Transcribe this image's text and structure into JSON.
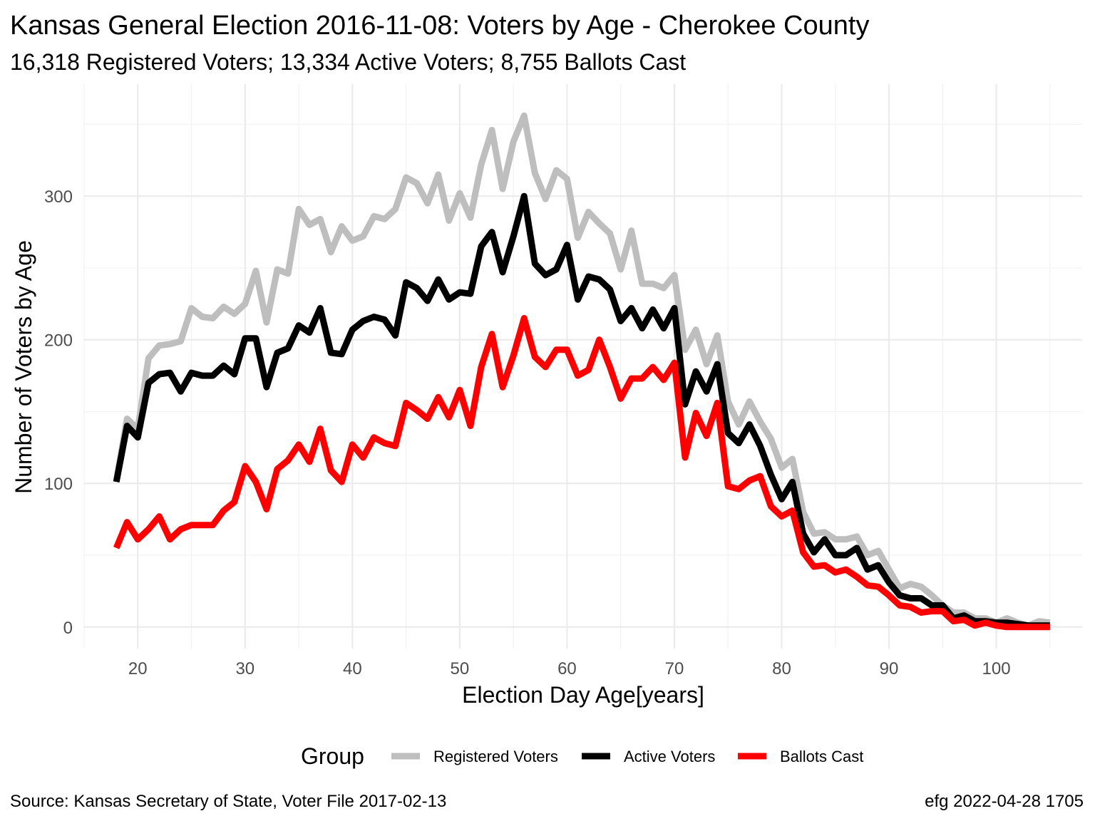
{
  "chart_data": {
    "type": "line",
    "title": "Kansas General Election 2016-11-08:  Voters by Age - Cherokee County",
    "subtitle": "16,318 Registered Voters; 13,334 Active Voters; 8,755 Ballots Cast",
    "xlabel": "Election Day Age[years]",
    "ylabel": "Number of Voters by Age",
    "xlim": [
      15,
      108
    ],
    "ylim": [
      -15,
      378
    ],
    "x_ticks": [
      20,
      30,
      40,
      50,
      60,
      70,
      80,
      90,
      100
    ],
    "y_ticks": [
      0,
      100,
      200,
      300
    ],
    "grid": true,
    "legend": {
      "title": "Group",
      "position": "bottom",
      "entries": [
        "Registered Voters",
        "Active Voters",
        "Ballots Cast"
      ]
    },
    "caption_left": "Source:  Kansas Secretary of State, Voter File  2017-02-13",
    "caption_right": "efg 2022-04-28 1705",
    "x": [
      18,
      19,
      20,
      21,
      22,
      23,
      24,
      25,
      26,
      27,
      28,
      29,
      30,
      31,
      32,
      33,
      34,
      35,
      36,
      37,
      38,
      39,
      40,
      41,
      42,
      43,
      44,
      45,
      46,
      47,
      48,
      49,
      50,
      51,
      52,
      53,
      54,
      55,
      56,
      57,
      58,
      59,
      60,
      61,
      62,
      63,
      64,
      65,
      66,
      67,
      68,
      69,
      70,
      71,
      72,
      73,
      74,
      75,
      76,
      77,
      78,
      79,
      80,
      81,
      82,
      83,
      84,
      85,
      86,
      87,
      88,
      89,
      90,
      91,
      92,
      93,
      94,
      95,
      96,
      97,
      98,
      99,
      100,
      101,
      102,
      103,
      104,
      105
    ],
    "series": [
      {
        "name": "Registered Voters",
        "color": "#bebebe",
        "values": [
          102,
          145,
          138,
          187,
          196,
          197,
          199,
          222,
          216,
          215,
          223,
          218,
          225,
          248,
          212,
          249,
          246,
          291,
          280,
          284,
          261,
          279,
          269,
          272,
          286,
          284,
          291,
          313,
          309,
          295,
          315,
          283,
          302,
          285,
          322,
          346,
          305,
          338,
          356,
          316,
          298,
          318,
          312,
          271,
          289,
          281,
          274,
          249,
          276,
          239,
          239,
          236,
          245,
          193,
          207,
          183,
          203,
          157,
          141,
          157,
          143,
          131,
          111,
          117,
          80,
          65,
          66,
          61,
          61,
          63,
          50,
          53,
          40,
          27,
          30,
          28,
          22,
          15,
          10,
          10,
          6,
          6,
          3,
          6,
          3,
          1,
          4,
          3
        ]
      },
      {
        "name": "Active Voters",
        "color": "#000000",
        "values": [
          101,
          140,
          132,
          170,
          176,
          177,
          164,
          177,
          175,
          175,
          182,
          176,
          201,
          201,
          167,
          191,
          194,
          210,
          205,
          222,
          191,
          190,
          207,
          213,
          216,
          214,
          203,
          240,
          236,
          227,
          242,
          228,
          233,
          232,
          265,
          275,
          247,
          272,
          300,
          253,
          245,
          249,
          266,
          228,
          244,
          242,
          235,
          213,
          222,
          208,
          221,
          208,
          222,
          155,
          178,
          164,
          183,
          135,
          128,
          141,
          126,
          106,
          89,
          101,
          65,
          52,
          61,
          50,
          50,
          55,
          40,
          43,
          31,
          22,
          20,
          20,
          15,
          15,
          6,
          8,
          4,
          4,
          3,
          3,
          2,
          1,
          1,
          1
        ]
      },
      {
        "name": "Ballots Cast",
        "color": "#ff0000",
        "values": [
          55,
          73,
          61,
          68,
          77,
          61,
          68,
          71,
          71,
          71,
          81,
          87,
          112,
          101,
          82,
          110,
          116,
          127,
          115,
          138,
          109,
          101,
          127,
          118,
          132,
          128,
          126,
          156,
          151,
          145,
          160,
          146,
          165,
          140,
          181,
          204,
          167,
          189,
          215,
          188,
          181,
          193,
          193,
          175,
          179,
          200,
          181,
          159,
          173,
          173,
          181,
          172,
          184,
          118,
          149,
          133,
          156,
          98,
          96,
          102,
          105,
          84,
          77,
          81,
          52,
          42,
          43,
          38,
          40,
          35,
          29,
          28,
          22,
          15,
          14,
          10,
          11,
          11,
          4,
          5,
          1,
          3,
          1,
          0,
          0,
          0,
          0,
          0
        ]
      }
    ]
  }
}
